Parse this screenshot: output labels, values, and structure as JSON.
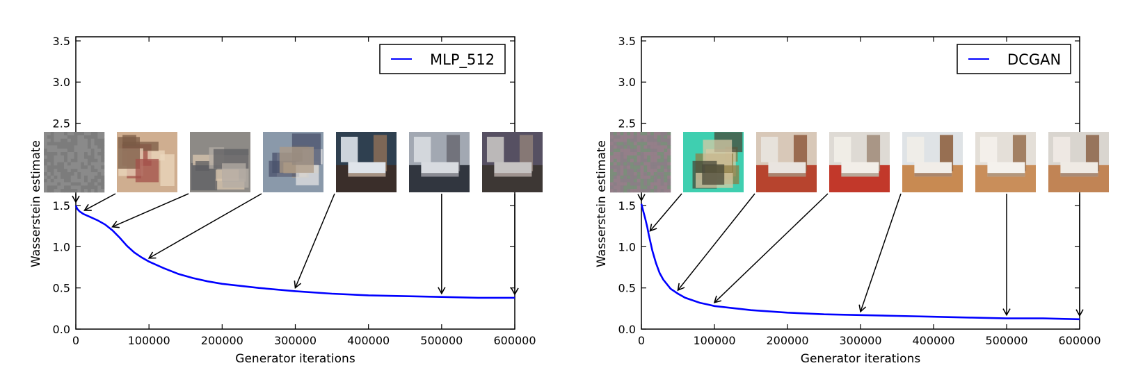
{
  "chart_data": [
    {
      "type": "line",
      "title": "",
      "xlabel": "Generator iterations",
      "ylabel": "Wasserstein estimate",
      "xlim": [
        0,
        600000
      ],
      "ylim": [
        0,
        3.55
      ],
      "xticks": [
        0,
        100000,
        200000,
        300000,
        400000,
        500000,
        600000
      ],
      "xtick_labels": [
        "0",
        "100000",
        "200000",
        "300000",
        "400000",
        "500000",
        "600000"
      ],
      "yticks": [
        0,
        0.5,
        1.0,
        1.5,
        2.0,
        2.5,
        3.0,
        3.5
      ],
      "ytick_labels": [
        "0.0",
        "0.5",
        "1.0",
        "1.5",
        "2.0",
        "2.5",
        "3.0",
        "3.5"
      ],
      "grid": false,
      "legend": "top-right",
      "series": [
        {
          "name": "MLP_512",
          "color": "#0000ff",
          "x": [
            0,
            2000,
            5000,
            10000,
            20000,
            30000,
            40000,
            50000,
            60000,
            70000,
            80000,
            90000,
            100000,
            120000,
            140000,
            160000,
            180000,
            200000,
            250000,
            300000,
            350000,
            400000,
            450000,
            500000,
            550000,
            600000
          ],
          "y": [
            1.5,
            1.46,
            1.43,
            1.4,
            1.36,
            1.32,
            1.27,
            1.2,
            1.11,
            1.01,
            0.93,
            0.87,
            0.82,
            0.74,
            0.67,
            0.62,
            0.58,
            0.55,
            0.5,
            0.46,
            0.43,
            0.41,
            0.4,
            0.39,
            0.38,
            0.38
          ]
        }
      ],
      "annotations": [
        {
          "x": 0,
          "y": 1.5
        },
        {
          "x": 10000,
          "y": 1.4
        },
        {
          "x": 50000,
          "y": 1.2
        },
        {
          "x": 100000,
          "y": 0.82
        },
        {
          "x": 300000,
          "y": 0.46
        },
        {
          "x": 500000,
          "y": 0.39
        },
        {
          "x": 600000,
          "y": 0.38
        }
      ],
      "thumbnails": [
        {
          "type": "noise-gray",
          "colors": [
            "#7c7c7c",
            "#8c8c8c"
          ]
        },
        {
          "type": "blurry",
          "colors": [
            "#cfae90",
            "#a3504a",
            "#ebd7bd",
            "#7b5b45"
          ]
        },
        {
          "type": "blurry",
          "colors": [
            "#8d8a86",
            "#d9c6ae",
            "#5d5d62",
            "#b4aca4"
          ]
        },
        {
          "type": "blurry",
          "colors": [
            "#8a99aa",
            "#e2e2e2",
            "#49516b",
            "#ad9b86"
          ]
        },
        {
          "type": "bedroom",
          "colors": [
            "#3a2e2a",
            "#dfe4ea",
            "#8b6f57",
            "#2f4050"
          ]
        },
        {
          "type": "bedroom",
          "colors": [
            "#31363f",
            "#d8dbe0",
            "#6a6a72",
            "#a2a8b2"
          ]
        },
        {
          "type": "bedroom",
          "colors": [
            "#3d3734",
            "#c6c3c2",
            "#8e7f79",
            "#565062"
          ]
        }
      ]
    },
    {
      "type": "line",
      "title": "",
      "xlabel": "Generator iterations",
      "ylabel": "Wasserstein estimate",
      "xlim": [
        0,
        600000
      ],
      "ylim": [
        0,
        3.55
      ],
      "xticks": [
        0,
        100000,
        200000,
        300000,
        400000,
        500000,
        600000
      ],
      "xtick_labels": [
        "0",
        "100000",
        "200000",
        "300000",
        "400000",
        "500000",
        "600000"
      ],
      "yticks": [
        0,
        0.5,
        1.0,
        1.5,
        2.0,
        2.5,
        3.0,
        3.5
      ],
      "ytick_labels": [
        "0.0",
        "0.5",
        "1.0",
        "1.5",
        "2.0",
        "2.5",
        "3.0",
        "3.5"
      ],
      "grid": false,
      "legend": "top-right",
      "series": [
        {
          "name": "DCGAN",
          "color": "#0000ff",
          "x": [
            0,
            2000,
            5000,
            8000,
            10000,
            15000,
            20000,
            25000,
            30000,
            40000,
            50000,
            60000,
            70000,
            80000,
            90000,
            100000,
            150000,
            200000,
            250000,
            300000,
            350000,
            400000,
            450000,
            500000,
            550000,
            600000
          ],
          "y": [
            1.52,
            1.45,
            1.35,
            1.24,
            1.15,
            0.95,
            0.8,
            0.68,
            0.6,
            0.49,
            0.43,
            0.38,
            0.35,
            0.32,
            0.3,
            0.28,
            0.23,
            0.2,
            0.18,
            0.17,
            0.16,
            0.15,
            0.14,
            0.13,
            0.13,
            0.12
          ]
        }
      ],
      "annotations": [
        {
          "x": 0,
          "y": 1.52
        },
        {
          "x": 10000,
          "y": 1.15
        },
        {
          "x": 50000,
          "y": 0.43
        },
        {
          "x": 100000,
          "y": 0.28
        },
        {
          "x": 300000,
          "y": 0.17
        },
        {
          "x": 500000,
          "y": 0.13
        },
        {
          "x": 600000,
          "y": 0.12
        }
      ],
      "thumbnails": [
        {
          "type": "noise-color",
          "colors": [
            "#8a7f86",
            "#7a8f7a",
            "#957f8a"
          ]
        },
        {
          "type": "blurry",
          "colors": [
            "#3fcfb0",
            "#8f7d45",
            "#d8c9a6",
            "#4a4a3a"
          ]
        },
        {
          "type": "bedroom",
          "colors": [
            "#b7442e",
            "#e9e4df",
            "#8f5a3d",
            "#d8c8b8"
          ]
        },
        {
          "type": "bedroom",
          "colors": [
            "#c2382a",
            "#f2eee8",
            "#a08a78",
            "#dedad4"
          ]
        },
        {
          "type": "bedroom",
          "colors": [
            "#c88a52",
            "#f1ede8",
            "#8b5a37",
            "#dfe3e6"
          ]
        },
        {
          "type": "bedroom",
          "colors": [
            "#c98e5a",
            "#f4f1ec",
            "#97704f",
            "#e4dfd8"
          ]
        },
        {
          "type": "bedroom",
          "colors": [
            "#c18455",
            "#efeae4",
            "#8b6348",
            "#d9d5cf"
          ]
        }
      ]
    }
  ]
}
